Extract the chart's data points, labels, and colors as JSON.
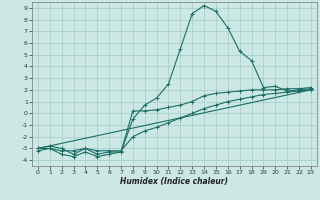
{
  "xlabel": "Humidex (Indice chaleur)",
  "xlim": [
    -0.5,
    23.5
  ],
  "ylim": [
    -4.5,
    9.5
  ],
  "background_color": "#cce8e5",
  "grid_color": "#aacfcc",
  "line_color": "#1a6e65",
  "xticks": [
    0,
    1,
    2,
    3,
    4,
    5,
    6,
    7,
    8,
    9,
    10,
    11,
    12,
    13,
    14,
    15,
    16,
    17,
    18,
    19,
    20,
    21,
    22,
    23
  ],
  "yticks": [
    -4,
    -3,
    -2,
    -1,
    0,
    1,
    2,
    3,
    4,
    5,
    6,
    7,
    8,
    9
  ],
  "series1_x": [
    0,
    1,
    2,
    3,
    4,
    5,
    6,
    7,
    8,
    9,
    10,
    11,
    12,
    13,
    14,
    15,
    16,
    17,
    18,
    19,
    20,
    21,
    22,
    23
  ],
  "series1_y": [
    -3.0,
    -3.0,
    -3.5,
    -3.7,
    -3.3,
    -3.7,
    -3.5,
    -3.3,
    -0.5,
    0.7,
    1.3,
    2.5,
    5.5,
    8.5,
    9.2,
    8.7,
    7.3,
    5.3,
    4.5,
    2.2,
    2.3,
    1.9,
    2.0,
    2.1
  ],
  "series2_x": [
    0,
    1,
    2,
    3,
    4,
    5,
    6,
    7,
    8,
    9,
    10,
    11,
    12,
    13,
    14,
    15,
    16,
    17,
    18,
    19,
    20,
    21,
    22,
    23
  ],
  "series2_y": [
    -3.0,
    -2.8,
    -3.0,
    -3.5,
    -3.0,
    -3.5,
    -3.3,
    -3.3,
    0.2,
    0.2,
    0.3,
    0.5,
    0.7,
    1.0,
    1.5,
    1.7,
    1.8,
    1.9,
    2.0,
    2.0,
    2.0,
    2.1,
    2.1,
    2.2
  ],
  "series3_x": [
    0,
    1,
    2,
    3,
    4,
    5,
    6,
    7,
    8,
    9,
    10,
    11,
    12,
    13,
    14,
    15,
    16,
    17,
    18,
    19,
    20,
    21,
    22,
    23
  ],
  "series3_y": [
    -3.2,
    -3.0,
    -3.2,
    -3.2,
    -3.0,
    -3.2,
    -3.2,
    -3.2,
    -2.0,
    -1.5,
    -1.2,
    -0.8,
    -0.4,
    0.0,
    0.4,
    0.7,
    1.0,
    1.2,
    1.4,
    1.6,
    1.7,
    1.8,
    1.9,
    2.0
  ],
  "series4_x": [
    0,
    23
  ],
  "series4_y": [
    -3.0,
    2.0
  ]
}
